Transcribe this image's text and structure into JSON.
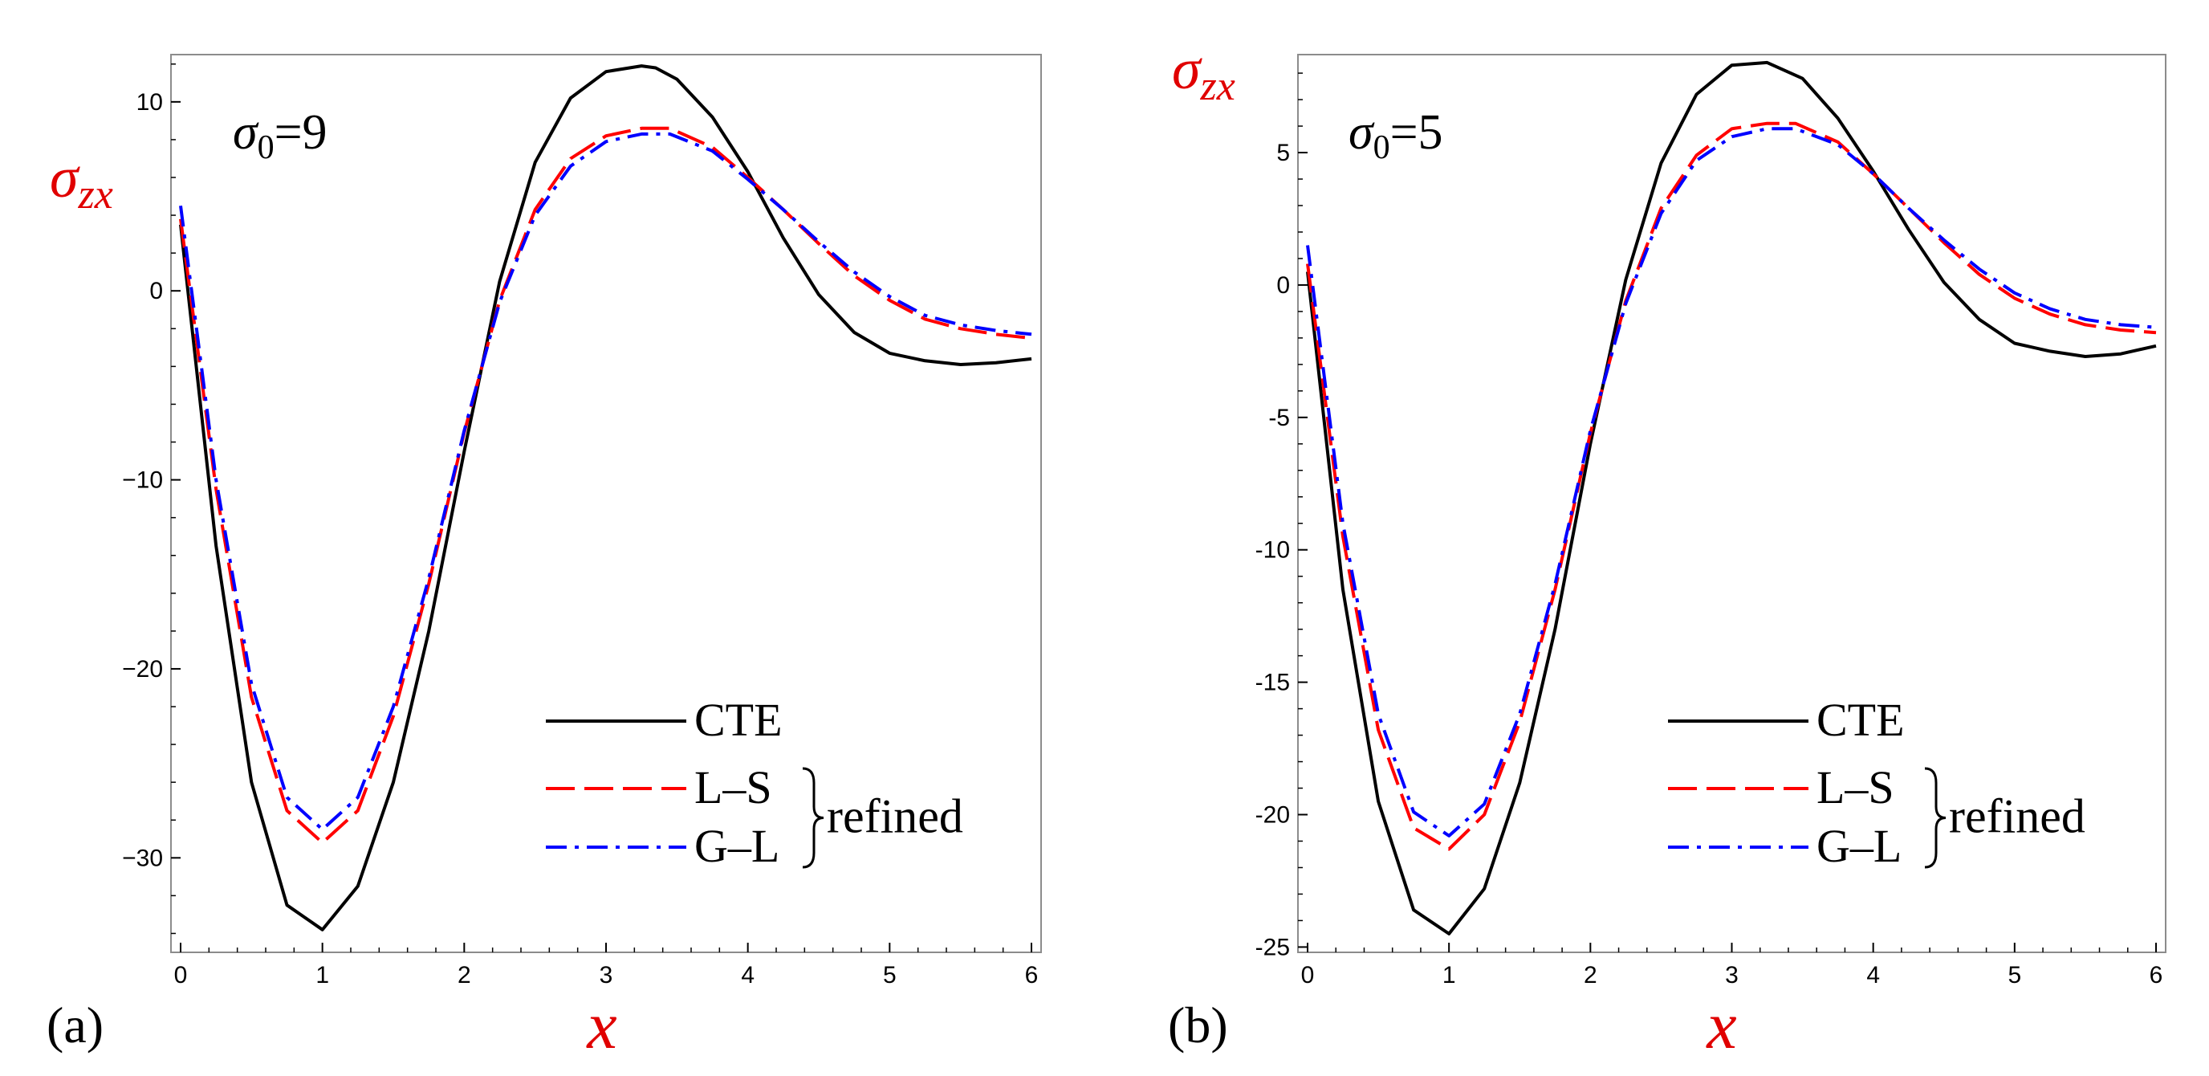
{
  "chart_data": [
    {
      "type": "line",
      "panel_label": "(a)",
      "annotation": {
        "symbol": "σ",
        "subscript": "0",
        "rest": "=9"
      },
      "ylabel": {
        "symbol": "σ",
        "subscript": "zx"
      },
      "xlabel": "x",
      "xlim": [
        0,
        6
      ],
      "ylim": [
        -35,
        12.5
      ],
      "xticks": [
        0,
        1,
        2,
        3,
        4,
        5,
        6
      ],
      "yticks": [
        10,
        0,
        -10,
        -20,
        -30
      ],
      "ytick_labels": [
        "10",
        "0",
        "−10",
        "−20",
        "−30"
      ],
      "legend": {
        "position": "bottom-right",
        "entries": [
          "CTE",
          "L–S",
          "G–L"
        ],
        "brace_label": "refined"
      },
      "series": [
        {
          "name": "CTE",
          "color": "#000000",
          "dash": "solid",
          "x": [
            0,
            0.25,
            0.5,
            0.75,
            1.0,
            1.25,
            1.5,
            1.75,
            2.0,
            2.25,
            2.5,
            2.75,
            3.0,
            3.25,
            3.35,
            3.5,
            3.75,
            4.0,
            4.25,
            4.5,
            4.75,
            5.0,
            5.25,
            5.5,
            5.75,
            6.0
          ],
          "y": [
            3.5,
            -13.5,
            -26.0,
            -32.5,
            -33.8,
            -31.5,
            -26.0,
            -18.0,
            -8.5,
            0.5,
            6.8,
            10.2,
            11.6,
            11.9,
            11.8,
            11.2,
            9.2,
            6.3,
            2.8,
            -0.2,
            -2.2,
            -3.3,
            -3.7,
            -3.9,
            -3.8,
            -3.6
          ]
        },
        {
          "name": "L–S",
          "color": "#ff0000",
          "dash": "long-dash",
          "x": [
            0,
            0.25,
            0.5,
            0.75,
            1.0,
            1.25,
            1.5,
            1.75,
            2.0,
            2.25,
            2.5,
            2.75,
            3.0,
            3.25,
            3.45,
            3.75,
            4.0,
            4.25,
            4.5,
            4.75,
            5.0,
            5.25,
            5.5,
            5.75,
            6.0
          ],
          "y": [
            3.8,
            -10.5,
            -21.5,
            -27.5,
            -29.2,
            -27.5,
            -22.5,
            -15.5,
            -7.5,
            -0.5,
            4.3,
            7.0,
            8.2,
            8.6,
            8.6,
            7.6,
            6.0,
            4.3,
            2.5,
            0.8,
            -0.5,
            -1.5,
            -2.0,
            -2.3,
            -2.5
          ]
        },
        {
          "name": "G–L",
          "color": "#0000ff",
          "dash": "dash-dot",
          "x": [
            0,
            0.25,
            0.5,
            0.75,
            1.0,
            1.25,
            1.5,
            1.75,
            2.0,
            2.25,
            2.5,
            2.75,
            3.0,
            3.25,
            3.45,
            3.75,
            4.0,
            4.25,
            4.5,
            4.75,
            5.0,
            5.25,
            5.5,
            5.75,
            6.0
          ],
          "y": [
            4.5,
            -10.0,
            -20.8,
            -26.8,
            -28.5,
            -26.8,
            -22.0,
            -15.2,
            -7.4,
            -0.6,
            4.0,
            6.6,
            7.9,
            8.3,
            8.3,
            7.4,
            5.9,
            4.3,
            2.6,
            1.0,
            -0.3,
            -1.3,
            -1.8,
            -2.1,
            -2.3
          ]
        }
      ]
    },
    {
      "type": "line",
      "panel_label": "(b)",
      "annotation": {
        "symbol": "σ",
        "subscript": "0",
        "rest": "=5"
      },
      "ylabel": {
        "symbol": "σ",
        "subscript": "zx"
      },
      "xlabel": "x",
      "xlim": [
        0,
        6
      ],
      "ylim": [
        -25.2,
        8.7
      ],
      "xticks": [
        0,
        1,
        2,
        3,
        4,
        5,
        6
      ],
      "yticks": [
        5,
        0,
        -5,
        -10,
        -15,
        -20,
        -25
      ],
      "ytick_labels": [
        "5",
        "0",
        "-5",
        "-10",
        "-15",
        "-20",
        "-25"
      ],
      "legend": {
        "position": "bottom-right",
        "entries": [
          "CTE",
          "L–S",
          "G–L"
        ],
        "brace_label": "refined"
      },
      "series": [
        {
          "name": "CTE",
          "color": "#000000",
          "dash": "solid",
          "x": [
            0,
            0.25,
            0.5,
            0.75,
            1.0,
            1.25,
            1.5,
            1.75,
            2.0,
            2.25,
            2.5,
            2.75,
            3.0,
            3.25,
            3.5,
            3.75,
            4.0,
            4.25,
            4.5,
            4.75,
            5.0,
            5.25,
            5.5,
            5.75,
            6.0
          ],
          "y": [
            0.5,
            -11.5,
            -19.5,
            -23.6,
            -24.5,
            -22.8,
            -18.8,
            -13.0,
            -6.0,
            0.2,
            4.6,
            7.2,
            8.3,
            8.4,
            7.8,
            6.3,
            4.3,
            2.1,
            0.1,
            -1.3,
            -2.2,
            -2.5,
            -2.7,
            -2.6,
            -2.3
          ]
        },
        {
          "name": "L–S",
          "color": "#ff0000",
          "dash": "long-dash",
          "x": [
            0,
            0.25,
            0.5,
            0.75,
            1.0,
            1.25,
            1.5,
            1.75,
            2.0,
            2.25,
            2.5,
            2.75,
            3.0,
            3.25,
            3.45,
            3.75,
            4.0,
            4.25,
            4.5,
            4.75,
            5.0,
            5.25,
            5.5,
            5.75,
            6.0
          ],
          "y": [
            0.8,
            -9.5,
            -16.8,
            -20.5,
            -21.3,
            -20.0,
            -16.5,
            -11.5,
            -5.6,
            -0.6,
            2.9,
            4.9,
            5.9,
            6.1,
            6.1,
            5.4,
            4.2,
            2.9,
            1.6,
            0.4,
            -0.5,
            -1.1,
            -1.5,
            -1.7,
            -1.8
          ]
        },
        {
          "name": "G–L",
          "color": "#0000ff",
          "dash": "dash-dot",
          "x": [
            0,
            0.25,
            0.5,
            0.75,
            1.0,
            1.25,
            1.5,
            1.75,
            2.0,
            2.25,
            2.5,
            2.75,
            3.0,
            3.25,
            3.45,
            3.75,
            4.0,
            4.25,
            4.5,
            4.75,
            5.0,
            5.25,
            5.5,
            5.75,
            6.0
          ],
          "y": [
            1.5,
            -9.0,
            -16.2,
            -19.9,
            -20.8,
            -19.6,
            -16.2,
            -11.3,
            -5.5,
            -0.7,
            2.7,
            4.7,
            5.6,
            5.9,
            5.9,
            5.3,
            4.2,
            2.9,
            1.7,
            0.6,
            -0.3,
            -0.9,
            -1.3,
            -1.5,
            -1.6
          ]
        }
      ]
    }
  ]
}
